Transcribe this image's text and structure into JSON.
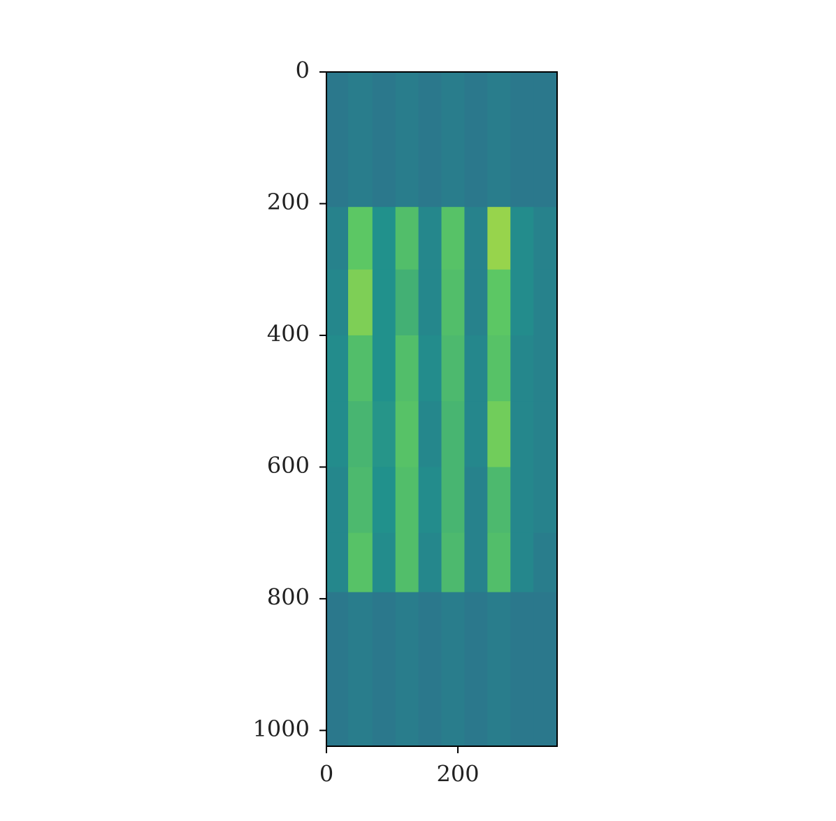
{
  "chart_data": {
    "type": "heatmap",
    "colormap": "viridis",
    "xlim": [
      0,
      351
    ],
    "ylim": [
      1024,
      0
    ],
    "xticks": [
      0,
      200
    ],
    "yticks": [
      0,
      200,
      400,
      600,
      800,
      1000
    ],
    "x_edges": [
      0,
      33,
      70,
      105,
      140,
      175,
      210,
      245,
      280,
      315,
      351
    ],
    "y_edges": [
      0,
      205,
      300,
      400,
      500,
      600,
      700,
      790,
      1024
    ],
    "values": [
      [
        0.4,
        0.42,
        0.4,
        0.42,
        0.4,
        0.42,
        0.4,
        0.42,
        0.4,
        0.4
      ],
      [
        0.44,
        0.74,
        0.5,
        0.7,
        0.46,
        0.72,
        0.44,
        0.84,
        0.48,
        0.44
      ],
      [
        0.46,
        0.8,
        0.5,
        0.64,
        0.46,
        0.7,
        0.44,
        0.74,
        0.48,
        0.44
      ],
      [
        0.48,
        0.7,
        0.5,
        0.7,
        0.48,
        0.68,
        0.46,
        0.72,
        0.46,
        0.44
      ],
      [
        0.48,
        0.66,
        0.52,
        0.72,
        0.46,
        0.66,
        0.46,
        0.78,
        0.46,
        0.44
      ],
      [
        0.46,
        0.68,
        0.5,
        0.7,
        0.48,
        0.66,
        0.44,
        0.68,
        0.46,
        0.44
      ],
      [
        0.46,
        0.72,
        0.48,
        0.7,
        0.46,
        0.68,
        0.44,
        0.7,
        0.46,
        0.42
      ],
      [
        0.4,
        0.42,
        0.4,
        0.42,
        0.4,
        0.42,
        0.4,
        0.42,
        0.4,
        0.4
      ]
    ]
  }
}
